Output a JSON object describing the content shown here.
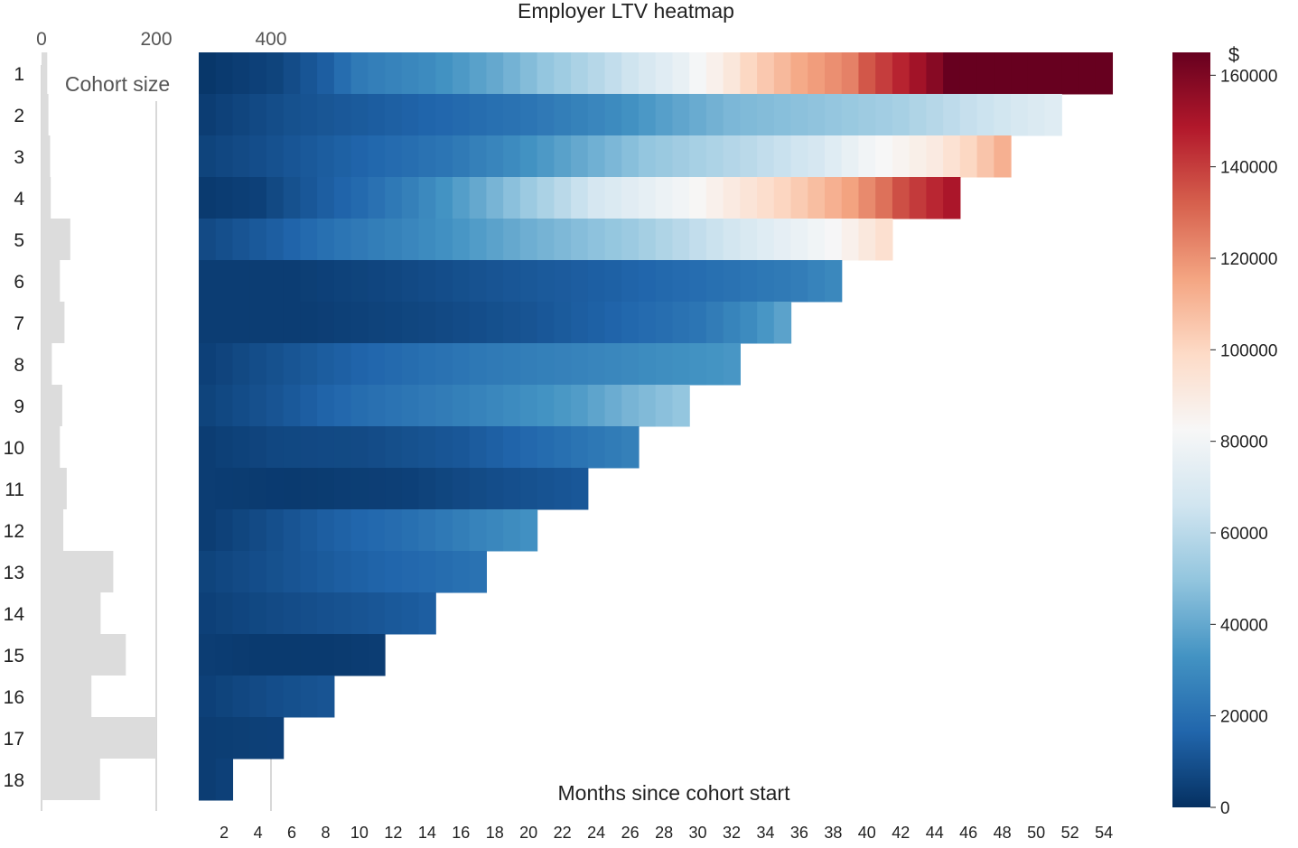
{
  "chart_data": [
    {
      "type": "heatmap",
      "title": "Employer LTV heatmap",
      "xlabel": "Months since cohort start",
      "x_ticks": [
        2,
        4,
        6,
        8,
        10,
        12,
        14,
        16,
        18,
        20,
        22,
        24,
        26,
        28,
        30,
        32,
        34,
        36,
        38,
        40,
        42,
        44,
        46,
        48,
        50,
        52,
        54
      ],
      "y_categories": [
        "1",
        "2",
        "3",
        "4",
        "5",
        "6",
        "7",
        "8",
        "9",
        "10",
        "11",
        "12",
        "13",
        "14",
        "15",
        "16",
        "17",
        "18"
      ],
      "row_lengths": [
        54,
        51,
        48,
        45,
        41,
        38,
        35,
        32,
        29,
        26,
        23,
        20,
        17,
        14,
        11,
        8,
        5,
        2
      ],
      "row_anchors": [
        [
          [
            1,
            2000
          ],
          [
            5,
            6000
          ],
          [
            8,
            14000
          ],
          [
            10,
            24000
          ],
          [
            14,
            30000
          ],
          [
            18,
            40000
          ],
          [
            21,
            50000
          ],
          [
            25,
            62000
          ],
          [
            29,
            76000
          ],
          [
            32,
            92000
          ],
          [
            33,
            100000
          ],
          [
            36,
            114000
          ],
          [
            39,
            124000
          ],
          [
            40,
            134000
          ],
          [
            42,
            146000
          ],
          [
            44,
            158000
          ],
          [
            45,
            165000
          ],
          [
            54,
            165000
          ]
        ],
        [
          [
            1,
            4000
          ],
          [
            6,
            10000
          ],
          [
            10,
            13000
          ],
          [
            15,
            17000
          ],
          [
            20,
            22000
          ],
          [
            25,
            30000
          ],
          [
            28,
            37000
          ],
          [
            32,
            45000
          ],
          [
            37,
            49000
          ],
          [
            42,
            55000
          ],
          [
            46,
            63000
          ],
          [
            51,
            72000
          ]
        ],
        [
          [
            1,
            6000
          ],
          [
            4,
            9000
          ],
          [
            10,
            16000
          ],
          [
            15,
            22000
          ],
          [
            19,
            30000
          ],
          [
            23,
            40000
          ],
          [
            27,
            50000
          ],
          [
            33,
            60000
          ],
          [
            37,
            68000
          ],
          [
            40,
            80000
          ],
          [
            44,
            90000
          ],
          [
            46,
            100000
          ],
          [
            48,
            112000
          ]
        ],
        [
          [
            1,
            3000
          ],
          [
            4,
            5000
          ],
          [
            6,
            10000
          ],
          [
            10,
            18000
          ],
          [
            13,
            26000
          ],
          [
            17,
            40000
          ],
          [
            21,
            56000
          ],
          [
            24,
            68000
          ],
          [
            29,
            80000
          ],
          [
            32,
            90000
          ],
          [
            36,
            104000
          ],
          [
            39,
            116000
          ],
          [
            41,
            128000
          ],
          [
            42,
            136000
          ],
          [
            45,
            150000
          ]
        ],
        [
          [
            1,
            8000
          ],
          [
            5,
            14000
          ],
          [
            9,
            22000
          ],
          [
            14,
            30000
          ],
          [
            20,
            42000
          ],
          [
            26,
            52000
          ],
          [
            30,
            62000
          ],
          [
            34,
            72000
          ],
          [
            38,
            82000
          ],
          [
            41,
            96000
          ]
        ],
        [
          [
            1,
            4000
          ],
          [
            6,
            4000
          ],
          [
            12,
            7000
          ],
          [
            18,
            11000
          ],
          [
            25,
            15000
          ],
          [
            31,
            20000
          ],
          [
            36,
            25000
          ],
          [
            38,
            29000
          ]
        ],
        [
          [
            1,
            4000
          ],
          [
            7,
            4000
          ],
          [
            14,
            7000
          ],
          [
            20,
            11000
          ],
          [
            25,
            16000
          ],
          [
            30,
            22000
          ],
          [
            33,
            30000
          ],
          [
            35,
            38000
          ]
        ],
        [
          [
            1,
            5000
          ],
          [
            5,
            10000
          ],
          [
            10,
            16000
          ],
          [
            17,
            23000
          ],
          [
            24,
            28000
          ],
          [
            32,
            34000
          ]
        ],
        [
          [
            1,
            6000
          ],
          [
            5,
            11000
          ],
          [
            10,
            19000
          ],
          [
            17,
            27000
          ],
          [
            23,
            36000
          ],
          [
            26,
            44000
          ],
          [
            29,
            50000
          ]
        ],
        [
          [
            1,
            4000
          ],
          [
            5,
            7000
          ],
          [
            10,
            8000
          ],
          [
            16,
            12000
          ],
          [
            22,
            20000
          ],
          [
            26,
            26000
          ]
        ],
        [
          [
            1,
            4000
          ],
          [
            6,
            3000
          ],
          [
            13,
            5000
          ],
          [
            18,
            9000
          ],
          [
            23,
            12000
          ]
        ],
        [
          [
            1,
            4000
          ],
          [
            4,
            8000
          ],
          [
            8,
            14000
          ],
          [
            13,
            20000
          ],
          [
            17,
            27000
          ],
          [
            20,
            32000
          ]
        ],
        [
          [
            1,
            6000
          ],
          [
            5,
            10000
          ],
          [
            10,
            15000
          ],
          [
            14,
            18000
          ],
          [
            17,
            21000
          ]
        ],
        [
          [
            1,
            5000
          ],
          [
            5,
            8000
          ],
          [
            10,
            11000
          ],
          [
            14,
            14000
          ]
        ],
        [
          [
            1,
            4000
          ],
          [
            4,
            3000
          ],
          [
            8,
            3000
          ],
          [
            11,
            4000
          ]
        ],
        [
          [
            1,
            5000
          ],
          [
            5,
            9000
          ],
          [
            8,
            11000
          ]
        ],
        [
          [
            1,
            4000
          ],
          [
            5,
            5000
          ]
        ],
        [
          [
            1,
            4000
          ],
          [
            2,
            5000
          ]
        ]
      ]
    },
    {
      "type": "bar",
      "orientation": "horizontal",
      "title": "Cohort size",
      "categories": [
        "1",
        "2",
        "3",
        "4",
        "5",
        "6",
        "7",
        "8",
        "9",
        "10",
        "11",
        "12",
        "13",
        "14",
        "15",
        "16",
        "17",
        "18"
      ],
      "values": [
        10,
        12,
        15,
        16,
        50,
        32,
        40,
        18,
        36,
        32,
        44,
        38,
        125,
        103,
        147,
        87,
        200,
        102
      ],
      "x_ticks": [
        "0",
        "200",
        "400"
      ]
    },
    {
      "type": "colorbar",
      "label": "$",
      "vmin": 0,
      "vmax": 165000,
      "ticks": [
        0,
        20000,
        40000,
        60000,
        80000,
        100000,
        120000,
        140000,
        160000
      ],
      "tick_labels": [
        "0",
        "20000",
        "40000",
        "60000",
        "80000",
        "100000",
        "120000",
        "140000",
        "160000"
      ]
    }
  ]
}
